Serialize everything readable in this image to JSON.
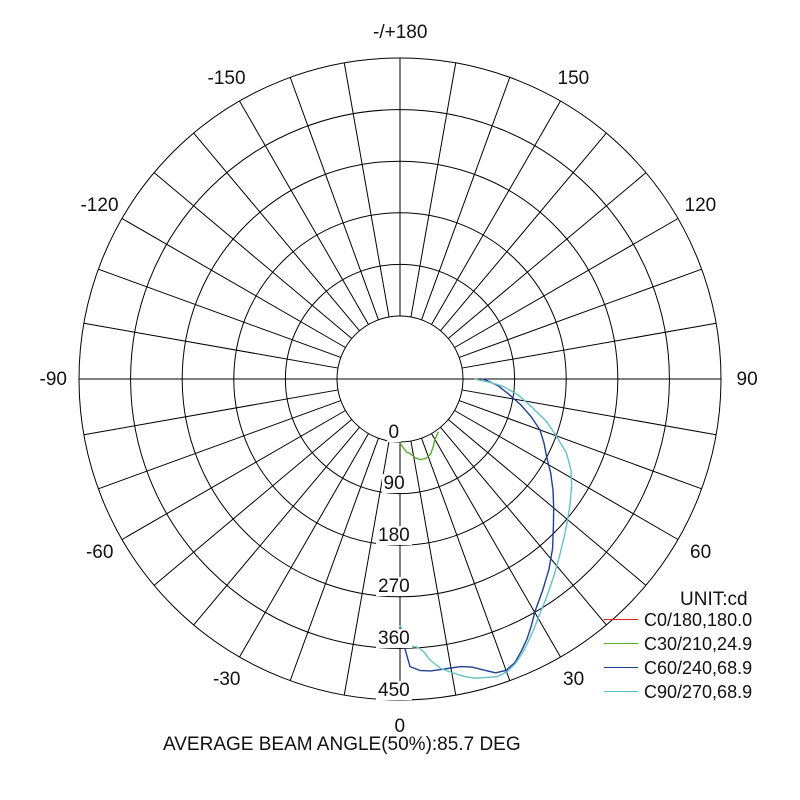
{
  "chart_data": {
    "type": "polar",
    "angle_labels": [
      {
        "text": "-/+180",
        "deg": 180
      },
      {
        "text": "150",
        "deg": 150
      },
      {
        "text": "120",
        "deg": 120
      },
      {
        "text": "90",
        "deg": 90
      },
      {
        "text": "60",
        "deg": 60
      },
      {
        "text": "30",
        "deg": 30
      },
      {
        "text": "0",
        "deg": 0
      },
      {
        "text": "-30",
        "deg": -30
      },
      {
        "text": "-60",
        "deg": -60
      },
      {
        "text": "-90",
        "deg": -90
      },
      {
        "text": "-120",
        "deg": -120
      },
      {
        "text": "-150",
        "deg": -150
      }
    ],
    "radial_ticks": [
      0,
      90,
      180,
      270,
      360,
      450
    ],
    "radial_tick_labels": [
      "0",
      "90",
      "180",
      "270",
      "360",
      "450"
    ],
    "unit": "UNIT:cd",
    "annotation": "AVERAGE BEAM ANGLE(50%):85.7 DEG",
    "series": [
      {
        "name": "C0/180,180.0",
        "color": "#e8201c",
        "points": []
      },
      {
        "name": "C30/210,24.9",
        "color": "#5aac2e",
        "points": [
          [
            0,
            2
          ],
          [
            5,
            18
          ],
          [
            8,
            22
          ],
          [
            11,
            30
          ],
          [
            14,
            35
          ],
          [
            18,
            36
          ],
          [
            22,
            32
          ],
          [
            26,
            22
          ],
          [
            30,
            12
          ],
          [
            36,
            4
          ]
        ]
      },
      {
        "name": "C60/240,68.9",
        "color": "#1f3f8f",
        "points": [
          [
            0,
            330
          ],
          [
            2,
            392
          ],
          [
            4,
            400
          ],
          [
            6,
            402
          ],
          [
            8,
            402
          ],
          [
            10,
            402
          ],
          [
            12,
            403
          ],
          [
            14,
            408
          ],
          [
            16,
            418
          ],
          [
            18,
            429
          ],
          [
            20,
            431
          ],
          [
            22,
            424
          ],
          [
            24,
            410
          ],
          [
            26,
            395
          ],
          [
            28,
            378
          ],
          [
            30,
            360
          ],
          [
            34,
            335
          ],
          [
            38,
            312
          ],
          [
            42,
            288
          ],
          [
            46,
            262
          ],
          [
            50,
            240
          ],
          [
            54,
            220
          ],
          [
            58,
            200
          ],
          [
            62,
            180
          ],
          [
            66,
            165
          ],
          [
            70,
            150
          ],
          [
            74,
            128
          ],
          [
            78,
            105
          ],
          [
            82,
            82
          ],
          [
            86,
            62
          ],
          [
            88,
            48
          ],
          [
            90,
            35
          ]
        ]
      },
      {
        "name": "C90/270,68.9",
        "color": "#64c0c8",
        "points": [
          [
            0,
            320
          ],
          [
            2,
            355
          ],
          [
            4,
            360
          ],
          [
            5,
            368
          ],
          [
            6,
            382
          ],
          [
            8,
            400
          ],
          [
            10,
            410
          ],
          [
            12,
            420
          ],
          [
            14,
            428
          ],
          [
            16,
            432
          ],
          [
            18,
            436
          ],
          [
            20,
            434
          ],
          [
            22,
            426
          ],
          [
            24,
            414
          ],
          [
            26,
            400
          ],
          [
            28,
            386
          ],
          [
            30,
            372
          ],
          [
            34,
            348
          ],
          [
            38,
            326
          ],
          [
            42,
            306
          ],
          [
            46,
            288
          ],
          [
            50,
            272
          ],
          [
            54,
            257
          ],
          [
            58,
            243
          ],
          [
            62,
            228
          ],
          [
            66,
            208
          ],
          [
            70,
            180
          ],
          [
            74,
            155
          ],
          [
            78,
            125
          ],
          [
            82,
            100
          ],
          [
            86,
            70
          ],
          [
            88,
            45
          ],
          [
            90,
            20
          ]
        ]
      }
    ],
    "rmax": 450,
    "grid": true
  }
}
